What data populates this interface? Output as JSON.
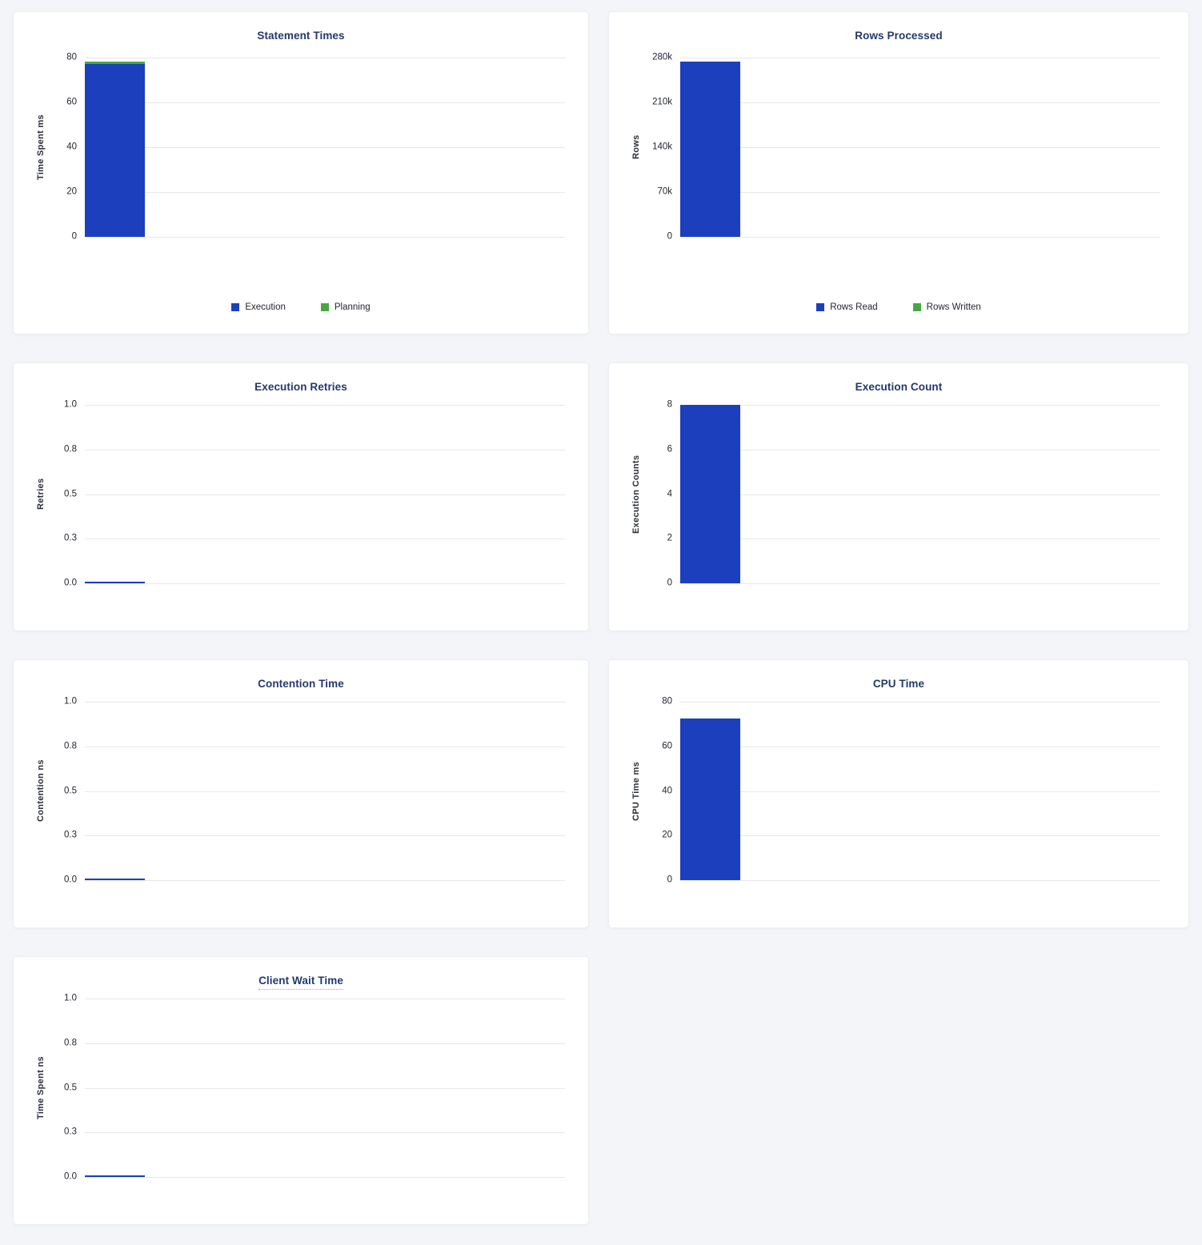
{
  "colors": {
    "bar_blue": "#1c3fbd",
    "bar_green": "#46a843",
    "title_navy": "#24386b",
    "grid_gray": "#e7e8ea",
    "page_background": "#f3f5f9"
  },
  "chart_data": [
    {
      "type": "bar",
      "title": "Statement Times",
      "xlabel": "",
      "ylabel": "Time Spent ms",
      "categories": [
        ""
      ],
      "series": [
        {
          "name": "Execution",
          "values": [
            77
          ]
        },
        {
          "name": "Planning",
          "values": [
            1.2
          ]
        }
      ],
      "ylim": [
        0,
        80
      ],
      "yticks": [
        "80",
        "60",
        "40",
        "20",
        "0"
      ],
      "grid": true,
      "legend": [
        "Execution",
        "Planning"
      ],
      "legend_position": "bottom",
      "colors": [
        "#1c3fbd",
        "#46a843"
      ],
      "title_underlined": false
    },
    {
      "type": "bar",
      "title": "Rows Processed",
      "xlabel": "",
      "ylabel": "Rows",
      "categories": [
        ""
      ],
      "series": [
        {
          "name": "Rows Read",
          "values": [
            274000
          ]
        },
        {
          "name": "Rows Written",
          "values": [
            0
          ]
        }
      ],
      "ylim": [
        0,
        280000
      ],
      "yticks": [
        "280k",
        "210k",
        "140k",
        "70k",
        "0"
      ],
      "grid": true,
      "legend": [
        "Rows Read",
        "Rows Written"
      ],
      "legend_position": "bottom",
      "colors": [
        "#1c3fbd",
        "#46a843"
      ],
      "title_underlined": false
    },
    {
      "type": "bar",
      "title": "Execution Retries",
      "xlabel": "",
      "ylabel": "Retries",
      "categories": [
        ""
      ],
      "series": [
        {
          "name": "Retries",
          "values": [
            0
          ]
        }
      ],
      "ylim": [
        0,
        1
      ],
      "yticks": [
        "1.0",
        "0.8",
        "0.5",
        "0.3",
        "0.0"
      ],
      "grid": true,
      "legend": null,
      "legend_position": null,
      "colors": [
        "#1c3fbd"
      ],
      "title_underlined": false
    },
    {
      "type": "bar",
      "title": "Execution Count",
      "xlabel": "",
      "ylabel": "Execution Counts",
      "categories": [
        ""
      ],
      "series": [
        {
          "name": "Execution Count",
          "values": [
            8
          ]
        }
      ],
      "ylim": [
        0,
        8
      ],
      "yticks": [
        "8",
        "6",
        "4",
        "2",
        "0"
      ],
      "grid": true,
      "legend": null,
      "legend_position": null,
      "colors": [
        "#1c3fbd"
      ],
      "title_underlined": false
    },
    {
      "type": "bar",
      "title": "Contention Time",
      "xlabel": "",
      "ylabel": "Contention ns",
      "categories": [
        ""
      ],
      "series": [
        {
          "name": "Contention",
          "values": [
            0
          ]
        }
      ],
      "ylim": [
        0,
        1
      ],
      "yticks": [
        "1.0",
        "0.8",
        "0.5",
        "0.3",
        "0.0"
      ],
      "grid": true,
      "legend": null,
      "legend_position": null,
      "colors": [
        "#1c3fbd"
      ],
      "title_underlined": false
    },
    {
      "type": "bar",
      "title": "CPU Time",
      "xlabel": "",
      "ylabel": "CPU Time ms",
      "categories": [
        ""
      ],
      "series": [
        {
          "name": "CPU Time",
          "values": [
            72.5
          ]
        }
      ],
      "ylim": [
        0,
        80
      ],
      "yticks": [
        "80",
        "60",
        "40",
        "20",
        "0"
      ],
      "grid": true,
      "legend": null,
      "legend_position": null,
      "colors": [
        "#1c3fbd"
      ],
      "title_underlined": false
    },
    {
      "type": "bar",
      "title": "Client Wait Time",
      "xlabel": "",
      "ylabel": "Time Spent ns",
      "categories": [
        ""
      ],
      "series": [
        {
          "name": "Client Wait",
          "values": [
            0
          ]
        }
      ],
      "ylim": [
        0,
        1
      ],
      "yticks": [
        "1.0",
        "0.8",
        "0.5",
        "0.3",
        "0.0"
      ],
      "grid": true,
      "legend": null,
      "legend_position": null,
      "colors": [
        "#1c3fbd"
      ],
      "title_underlined": true
    }
  ]
}
